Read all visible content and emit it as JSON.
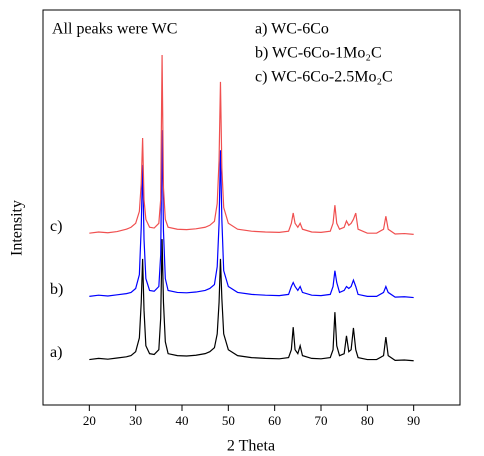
{
  "chart_data": {
    "type": "line",
    "annotation": "All peaks were WC",
    "xlabel": "2 Theta",
    "ylabel": "Intensity",
    "xlim": [
      10,
      100
    ],
    "xticks": [
      20,
      30,
      40,
      50,
      60,
      70,
      80,
      90
    ],
    "ylim": [
      0,
      100
    ],
    "x": [
      20,
      22,
      24,
      26,
      28,
      29,
      30,
      30.8,
      31.2,
      31.5,
      31.8,
      32.2,
      33,
      34,
      35,
      35.4,
      35.7,
      36,
      36.4,
      37,
      39,
      41,
      43,
      45,
      46,
      47,
      47.6,
      48,
      48.3,
      48.6,
      49,
      50,
      52,
      55,
      58,
      61,
      63,
      63.6,
      64,
      64.4,
      65,
      65.5,
      66,
      68,
      70,
      72,
      72.6,
      73,
      73.4,
      74,
      75,
      75.5,
      76,
      76.5,
      77,
      77.5,
      78,
      80,
      82,
      83.5,
      84,
      84.5,
      86,
      88,
      90
    ],
    "series": [
      {
        "name": "a) WC-6Co",
        "tag": "a)",
        "color": "#000000",
        "values": [
          11.5,
          11.8,
          11.6,
          11.9,
          12.2,
          12.5,
          13.5,
          17,
          26,
          37,
          24,
          15,
          13,
          12.8,
          14,
          22,
          42,
          26,
          16,
          13,
          12.5,
          12.4,
          12.6,
          13,
          13.5,
          14.5,
          18,
          26,
          37,
          27,
          18,
          14,
          12.5,
          12,
          11.8,
          11.7,
          12,
          14,
          19.7,
          14,
          13,
          15,
          12.5,
          11.8,
          11.7,
          12,
          14,
          23.5,
          15,
          12.5,
          13,
          17.5,
          13.5,
          14,
          19.5,
          14,
          12,
          11.5,
          11.5,
          12.5,
          17.2,
          12.5,
          11.3,
          11.4,
          11.2
        ]
      },
      {
        "name": "b) WC-6Co-1Mo₂C",
        "tag": "b)",
        "color": "#0000ff",
        "values": [
          27.5,
          27.8,
          27.6,
          27.9,
          28.2,
          28.5,
          29.5,
          33,
          45,
          60.8,
          42,
          32,
          29,
          28.8,
          30,
          38,
          69.6,
          44,
          32,
          29,
          28.5,
          28.4,
          28.6,
          29,
          29.5,
          30.5,
          35,
          46,
          64.5,
          47,
          34,
          30,
          28.5,
          28,
          27.8,
          27.7,
          28,
          30,
          31,
          30,
          29,
          30,
          28.5,
          27.8,
          27.7,
          28,
          30,
          34,
          31,
          28.5,
          29,
          30,
          29.5,
          30,
          31.6,
          30,
          28,
          27.5,
          27.5,
          28.5,
          30,
          28.5,
          27.3,
          27.4,
          27.2
        ]
      },
      {
        "name": "c) WC-6Co-2.5Mo₂C",
        "tag": "c)",
        "color": "#f05050",
        "values": [
          43.5,
          43.8,
          43.6,
          43.9,
          44.5,
          45,
          46,
          49,
          56,
          67.6,
          52,
          47,
          45,
          44.8,
          46,
          52,
          88.6,
          55,
          47,
          45,
          44.5,
          44.4,
          44.6,
          45,
          45.5,
          46.5,
          51,
          62,
          81.8,
          60,
          50,
          46,
          44.5,
          44,
          43.8,
          43.7,
          44,
          46,
          48.6,
          46,
          45,
          46,
          44.5,
          43.8,
          43.7,
          44,
          46,
          50.6,
          46,
          44.5,
          45,
          46.6,
          45.5,
          46,
          47,
          48.6,
          44.5,
          43.5,
          43.5,
          44.5,
          47.8,
          44.5,
          43.3,
          43.4,
          43.2
        ]
      }
    ]
  }
}
